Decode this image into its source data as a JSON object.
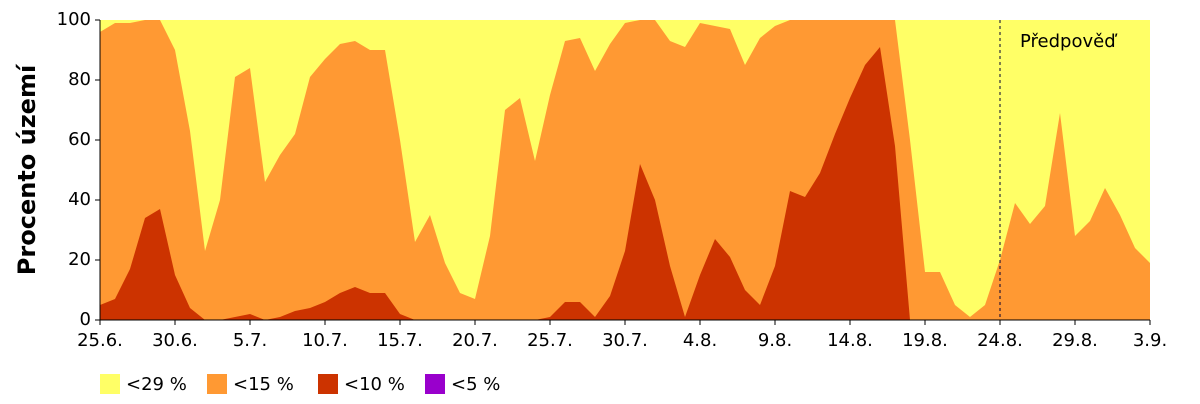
{
  "chart_data": {
    "type": "area",
    "y_label": "Procento území",
    "annotation": "Předpověď",
    "forecast_start": "24.8.",
    "categories": [
      "25.6.",
      null,
      null,
      null,
      null,
      "30.6.",
      null,
      null,
      null,
      null,
      "5.7.",
      null,
      null,
      null,
      null,
      "10.7.",
      null,
      null,
      null,
      null,
      "15.7.",
      null,
      null,
      null,
      null,
      "20.7.",
      null,
      null,
      null,
      null,
      "25.7.",
      null,
      null,
      null,
      null,
      "30.7.",
      null,
      null,
      null,
      null,
      "4.8.",
      null,
      null,
      null,
      null,
      "9.8.",
      null,
      null,
      null,
      null,
      "14.8.",
      null,
      null,
      null,
      null,
      "19.8.",
      null,
      null,
      null,
      null,
      "24.8.",
      null,
      null,
      null,
      null,
      "29.8.",
      null,
      null,
      null,
      null,
      "3.9."
    ],
    "series": [
      {
        "name": "<29 %",
        "color": "#ffff66",
        "values": [
          100,
          100,
          100,
          100,
          100,
          100,
          100,
          100,
          100,
          100,
          100,
          100,
          100,
          100,
          100,
          100,
          100,
          100,
          100,
          100,
          100,
          100,
          100,
          100,
          100,
          100,
          100,
          100,
          100,
          100,
          100,
          100,
          100,
          100,
          100,
          100,
          100,
          100,
          100,
          100,
          100,
          100,
          100,
          100,
          100,
          100,
          100,
          100,
          100,
          100,
          100,
          100,
          100,
          100,
          100,
          100,
          100,
          100,
          100,
          100,
          100,
          100,
          100,
          100,
          100,
          100,
          100,
          100,
          100,
          100,
          100
        ]
      },
      {
        "name": "<15 %",
        "color": "#ff9933",
        "values": [
          96,
          99,
          99,
          100,
          100,
          90,
          63,
          23,
          40,
          81,
          84,
          46,
          55,
          62,
          81,
          87,
          92,
          93,
          90,
          90,
          60,
          26,
          35,
          19,
          9,
          7,
          28,
          70,
          74,
          53,
          75,
          93,
          94,
          83,
          92,
          99,
          100,
          100,
          93,
          91,
          99,
          98,
          97,
          85,
          94,
          98,
          100,
          100,
          100,
          100,
          100,
          100,
          100,
          100,
          60,
          16,
          16,
          5,
          1,
          5,
          20,
          39,
          32,
          38,
          69,
          28,
          33,
          44,
          35,
          24,
          19
        ]
      },
      {
        "name": "<10 %",
        "color": "#cc3300",
        "values": [
          5,
          7,
          17,
          34,
          37,
          15,
          4,
          0,
          0,
          1,
          2,
          0,
          1,
          3,
          4,
          6,
          9,
          11,
          9,
          9,
          2,
          0,
          0,
          0,
          0,
          0,
          0,
          0,
          0,
          0,
          1,
          6,
          6,
          1,
          8,
          23,
          52,
          40,
          18,
          1,
          15,
          27,
          21,
          10,
          5,
          18,
          43,
          41,
          49,
          62,
          74,
          85,
          91,
          58,
          0,
          0,
          0,
          0,
          0,
          0,
          0,
          0,
          0,
          0,
          0,
          0,
          0,
          0,
          0,
          0,
          0
        ]
      },
      {
        "name": "<5 %",
        "color": "#9900cc",
        "values": [
          0,
          0,
          0,
          0,
          0,
          0,
          0,
          0,
          0,
          0,
          0,
          0,
          0,
          0,
          0,
          0,
          0,
          0,
          0,
          0,
          0,
          0,
          0,
          0,
          0,
          0,
          0,
          0,
          0,
          0,
          0,
          0,
          0,
          0,
          0,
          0,
          0,
          0,
          0,
          0,
          0,
          0,
          0,
          0,
          0,
          0,
          0,
          0,
          0,
          0,
          0,
          0,
          0,
          0,
          0,
          0,
          0,
          0,
          0,
          0,
          0,
          0,
          0,
          0,
          0,
          0,
          0,
          0,
          0,
          0,
          0
        ]
      }
    ],
    "ylim": [
      0,
      100
    ],
    "yticks": [
      0,
      20,
      40,
      60,
      80,
      100
    ]
  }
}
